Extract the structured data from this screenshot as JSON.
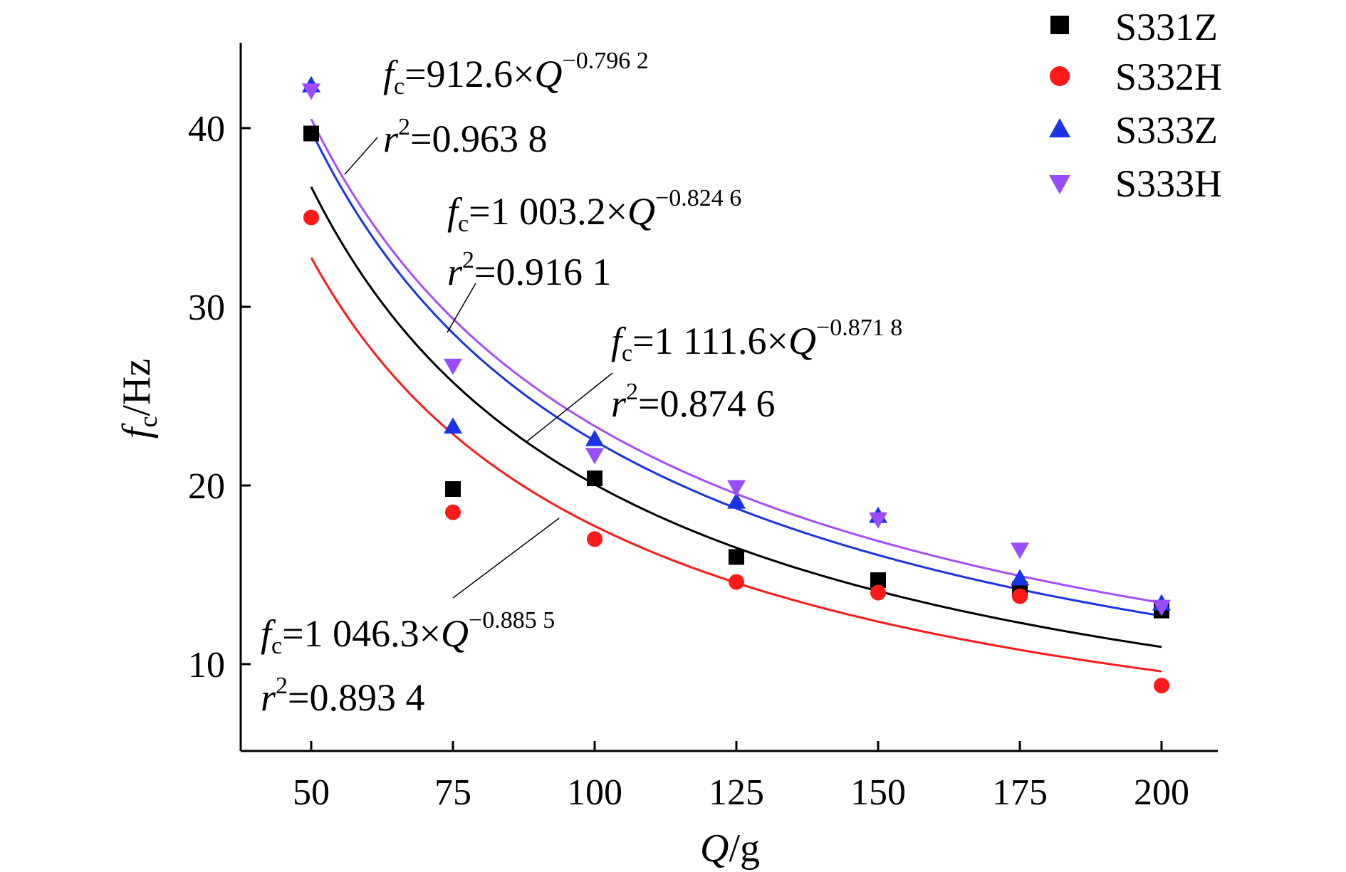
{
  "chart_data": {
    "type": "scatter",
    "title": "",
    "x_label": {
      "var": "Q",
      "unit": "/g"
    },
    "y_label": {
      "var": "f",
      "sub": "c",
      "unit": "/Hz"
    },
    "xlim": [
      40,
      215
    ],
    "ylim": [
      5,
      45
    ],
    "x_ticks": [
      50,
      75,
      100,
      125,
      150,
      175,
      200
    ],
    "y_ticks": [
      10,
      20,
      30,
      40
    ],
    "x_tick_labels": [
      "50",
      "75",
      "100",
      "125",
      "150",
      "175",
      "200"
    ],
    "y_tick_labels": [
      "10",
      "20",
      "30",
      "40"
    ],
    "grid": false,
    "legend_position": "top-right",
    "series": [
      {
        "name": "S331Z",
        "marker": "square",
        "color": "#000000",
        "x": [
          50,
          75,
          100,
          125,
          150,
          175,
          200
        ],
        "y": [
          39.7,
          19.8,
          20.4,
          16.0,
          14.7,
          14.2,
          13.0
        ]
      },
      {
        "name": "S332H",
        "marker": "circle",
        "color": "#ff1a1a",
        "x": [
          50,
          75,
          100,
          125,
          150,
          175,
          200
        ],
        "y": [
          35.0,
          18.5,
          17.0,
          14.6,
          14.0,
          13.8,
          8.8
        ]
      },
      {
        "name": "S333Z",
        "marker": "triangle-up",
        "color": "#1a33e6",
        "x": [
          50,
          75,
          100,
          125,
          150,
          175,
          200
        ],
        "y": [
          42.4,
          23.3,
          22.6,
          19.1,
          18.3,
          14.8,
          13.4
        ]
      },
      {
        "name": "S333H",
        "marker": "triangle-down",
        "color": "#9a4dff",
        "x": [
          50,
          75,
          100,
          125,
          150,
          175,
          200
        ],
        "y": [
          42.1,
          26.7,
          21.7,
          19.9,
          18.1,
          16.4,
          13.2
        ]
      }
    ],
    "fits": [
      {
        "series": "S331Z",
        "color": "#000000",
        "a": 1111.6,
        "b": 0.8718,
        "equation": {
          "lhs": "f",
          "sub": "c",
          "coef": "=1 111.6×",
          "var": "Q",
          "exp": "−0.871 8"
        },
        "r2": {
          "r": "r",
          "exp": "2",
          "value": "=0.874 6"
        }
      },
      {
        "series": "S332H",
        "color": "#ff1a1a",
        "a": 1046.3,
        "b": 0.8855,
        "equation": {
          "lhs": "f",
          "sub": "c",
          "coef": "=1 046.3×",
          "var": "Q",
          "exp": "−0.885 5"
        },
        "r2": {
          "r": "r",
          "exp": "2",
          "value": "=0.893 4"
        }
      },
      {
        "series": "S333Z",
        "color": "#1a33e6",
        "a": 1003.2,
        "b": 0.8246,
        "equation": {
          "lhs": "f",
          "sub": "c",
          "coef": "=1 003.2×",
          "var": "Q",
          "exp": "−0.824 6"
        },
        "r2": {
          "r": "r",
          "exp": "2",
          "value": "=0.916 1"
        }
      },
      {
        "series": "S333H",
        "color": "#a64dff",
        "a": 912.6,
        "b": 0.7962,
        "equation": {
          "lhs": "f",
          "sub": "c",
          "coef": "=912.6×",
          "var": "Q",
          "exp": "−0.796 2"
        },
        "r2": {
          "r": "r",
          "exp": "2",
          "value": "=0.963 8"
        }
      }
    ],
    "fit_x_range": [
      50,
      200
    ]
  }
}
